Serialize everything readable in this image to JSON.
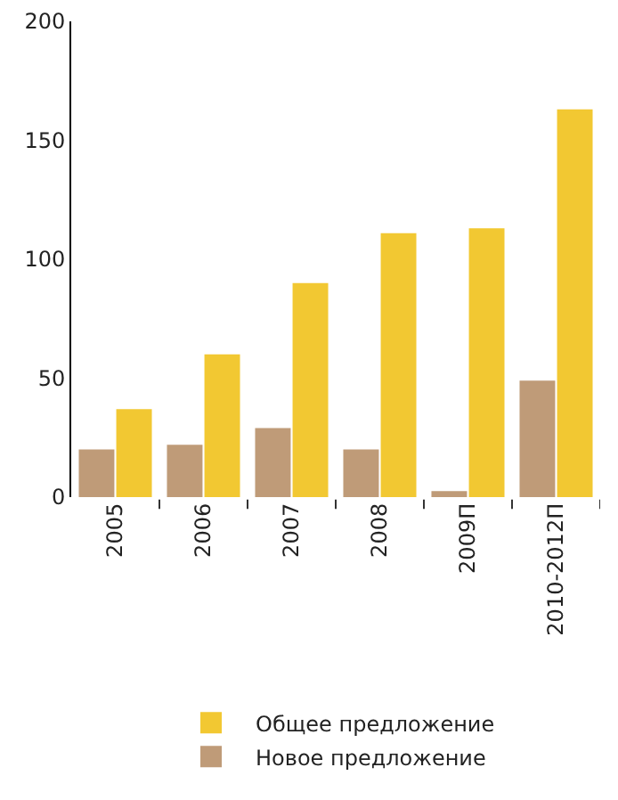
{
  "chart_data": {
    "type": "bar",
    "categories": [
      "2005",
      "2006",
      "2007",
      "2008",
      "2009П",
      "2010-2012П"
    ],
    "series": [
      {
        "name": "Новое предложение",
        "color": "#bf9b78",
        "values": [
          20,
          22,
          29,
          20,
          2.5,
          49
        ]
      },
      {
        "name": "Общее предложение",
        "color": "#f2c832",
        "values": [
          37,
          60,
          90,
          111,
          113,
          163
        ]
      }
    ],
    "ylim": [
      0,
      200
    ],
    "yticks": [
      0,
      50,
      100,
      150,
      200
    ],
    "grid": false,
    "legend": "bottom"
  }
}
